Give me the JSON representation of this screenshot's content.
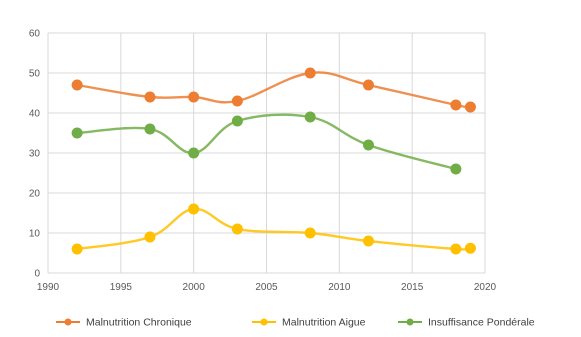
{
  "chart_data": {
    "type": "line",
    "x_axis": {
      "range": [
        1990,
        2020
      ],
      "ticks": [
        1990,
        1995,
        2000,
        2005,
        2010,
        2015,
        2020
      ],
      "tick_labels": [
        "1990",
        "1995",
        "2000",
        "2005",
        "2010",
        "2015",
        "2020"
      ]
    },
    "y_axis": {
      "range": [
        0,
        60
      ],
      "ticks": [
        0,
        10,
        20,
        30,
        40,
        50,
        60
      ],
      "tick_labels": [
        "0",
        "10",
        "20",
        "30",
        "40",
        "50",
        "60"
      ]
    },
    "grid": "vertical and horizontal, light gray",
    "legend_position": "bottom",
    "series": [
      {
        "name": "Malnutrition Chronique",
        "color": "#ED7D31",
        "points": [
          [
            1992,
            47
          ],
          [
            1997,
            44
          ],
          [
            2000,
            44
          ],
          [
            2003,
            43
          ],
          [
            2008,
            50
          ],
          [
            2012,
            47
          ],
          [
            2018,
            42
          ],
          [
            2019,
            41.5
          ]
        ]
      },
      {
        "name": "Malnutrition Aigue",
        "color": "#FFC000",
        "points": [
          [
            1992,
            6
          ],
          [
            1997,
            9
          ],
          [
            2000,
            16
          ],
          [
            2003,
            11
          ],
          [
            2008,
            10
          ],
          [
            2012,
            8
          ],
          [
            2018,
            6
          ],
          [
            2019,
            6.2
          ]
        ]
      },
      {
        "name": "Insuffisance Pondérale",
        "color": "#70AD47",
        "points": [
          [
            1992,
            35
          ],
          [
            1997,
            36
          ],
          [
            2000,
            30
          ],
          [
            2003,
            38
          ],
          [
            2008,
            39
          ],
          [
            2012,
            32
          ],
          [
            2018,
            26
          ]
        ]
      }
    ]
  }
}
